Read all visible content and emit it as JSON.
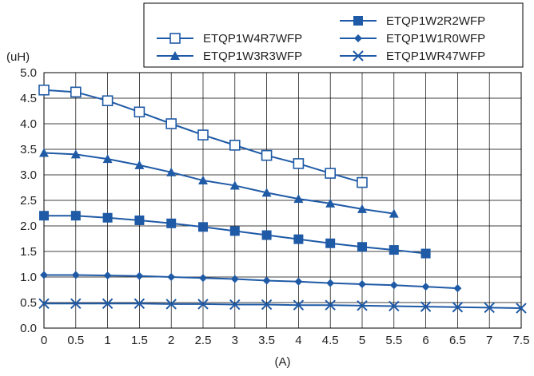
{
  "chart_data": {
    "type": "line",
    "xlabel": "(A)",
    "ylabel": "(uH)",
    "xlim": [
      0,
      7.5
    ],
    "ylim": [
      0,
      5.0
    ],
    "x_ticks": [
      "0",
      "0.5",
      "1",
      "1.5",
      "2",
      "2.5",
      "3",
      "3.5",
      "4",
      "4.5",
      "5",
      "5.5",
      "6",
      "6.5",
      "7",
      "7.5"
    ],
    "y_ticks": [
      "0.0",
      "0.5",
      "1.0",
      "1.5",
      "2.0",
      "2.5",
      "3.0",
      "3.5",
      "4.0",
      "4.5",
      "5.0"
    ],
    "grid": true,
    "legend_position": "top-right",
    "colors": {
      "series": "#1f5aa6",
      "grid": "#000000"
    },
    "series": [
      {
        "name": "ETQP1W4R7WFP",
        "marker": "open-square",
        "x": [
          0,
          0.5,
          1,
          1.5,
          2,
          2.5,
          3,
          3.5,
          4,
          4.5,
          5
        ],
        "values": [
          4.66,
          4.62,
          4.45,
          4.23,
          4.0,
          3.78,
          3.58,
          3.38,
          3.22,
          3.03,
          2.85
        ]
      },
      {
        "name": "ETQP1W2R2WFP",
        "marker": "filled-square",
        "x": [
          0,
          0.5,
          1,
          1.5,
          2,
          2.5,
          3,
          3.5,
          4,
          4.5,
          5,
          5.5,
          6
        ],
        "values": [
          2.2,
          2.2,
          2.16,
          2.11,
          2.05,
          1.98,
          1.9,
          1.82,
          1.74,
          1.66,
          1.59,
          1.53,
          1.46
        ]
      },
      {
        "name": "ETQP1W3R3WFP",
        "marker": "filled-triangle",
        "x": [
          0,
          0.5,
          1,
          1.5,
          2,
          2.5,
          3,
          3.5,
          4,
          4.5,
          5,
          5.5
        ],
        "values": [
          3.43,
          3.4,
          3.31,
          3.19,
          3.05,
          2.89,
          2.79,
          2.65,
          2.53,
          2.44,
          2.33,
          2.24
        ]
      },
      {
        "name": "ETQP1W1R0WFP",
        "marker": "filled-diamond",
        "x": [
          0,
          0.5,
          1,
          1.5,
          2,
          2.5,
          3,
          3.5,
          4,
          4.5,
          5,
          5.5,
          6,
          6.5
        ],
        "values": [
          1.04,
          1.04,
          1.03,
          1.02,
          1.0,
          0.98,
          0.96,
          0.93,
          0.91,
          0.88,
          0.86,
          0.84,
          0.81,
          0.78
        ]
      },
      {
        "name": "ETQP1WR47WFP",
        "marker": "cross",
        "x": [
          0,
          0.5,
          1,
          1.5,
          2,
          2.5,
          3,
          3.5,
          4,
          4.5,
          5,
          5.5,
          6,
          6.5,
          7,
          7.5
        ],
        "values": [
          0.48,
          0.48,
          0.48,
          0.48,
          0.47,
          0.47,
          0.46,
          0.46,
          0.45,
          0.45,
          0.44,
          0.43,
          0.42,
          0.41,
          0.4,
          0.39
        ]
      }
    ],
    "legend_order": [
      "ETQP1W2R2WFP",
      "ETQP1W4R7WFP",
      "ETQP1W1R0WFP",
      "ETQP1W3R3WFP",
      "ETQP1WR47WFP"
    ]
  }
}
